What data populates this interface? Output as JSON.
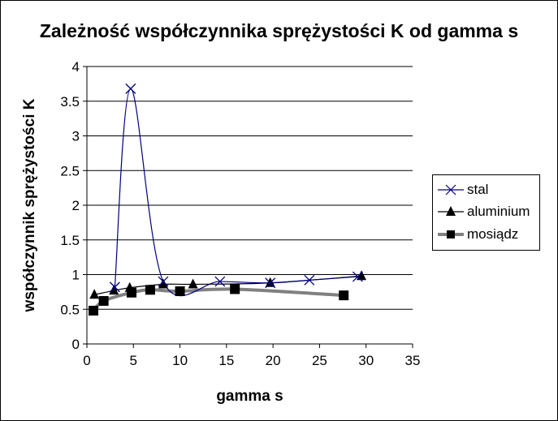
{
  "chart_data": {
    "type": "line",
    "title": "Zależność współczynnika sprężystości K od gamma s",
    "xlabel": "gamma s",
    "ylabel": "współczynnik sprężystości K",
    "xlim": [
      0,
      35
    ],
    "ylim": [
      0,
      4
    ],
    "x_ticks": [
      "0",
      "5",
      "10",
      "15",
      "20",
      "25",
      "30",
      "35"
    ],
    "y_ticks": [
      "0",
      "0.5",
      "1",
      "1.5",
      "2",
      "2.5",
      "3",
      "3.5",
      "4"
    ],
    "grid": "horizontal",
    "legend_position": "right",
    "series": [
      {
        "name": "stal",
        "color": "#000080",
        "marker": "x",
        "x": [
          3.0,
          4.7,
          8.2,
          14.3,
          19.7,
          23.9,
          29.1
        ],
        "y": [
          0.82,
          3.68,
          0.9,
          0.9,
          0.88,
          0.92,
          0.97
        ]
      },
      {
        "name": "aluminium",
        "color": "#000000",
        "marker": "triangle",
        "x": [
          0.8,
          2.9,
          4.6,
          8.2,
          11.4,
          19.7,
          29.5
        ],
        "y": [
          0.71,
          0.77,
          0.81,
          0.86,
          0.86,
          0.88,
          0.98
        ]
      },
      {
        "name": "mosiądz",
        "color": "#000000",
        "line_color": "#808080",
        "marker": "square",
        "x": [
          0.7,
          1.8,
          4.8,
          6.8,
          10.0,
          15.9,
          27.6
        ],
        "y": [
          0.48,
          0.62,
          0.74,
          0.78,
          0.76,
          0.79,
          0.7
        ]
      }
    ]
  }
}
